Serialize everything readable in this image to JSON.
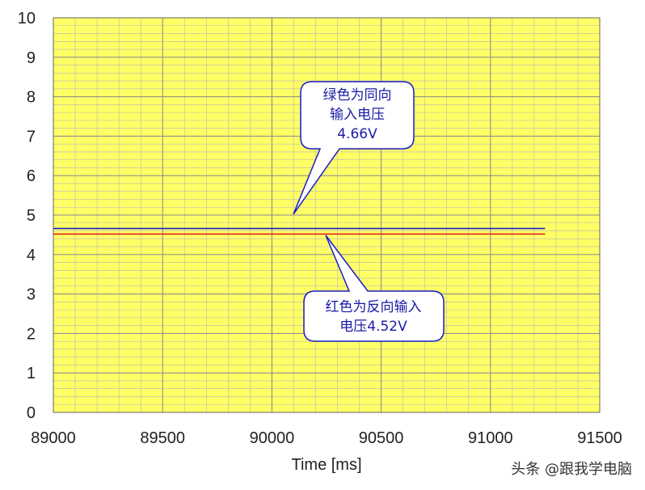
{
  "chart_data": {
    "type": "line",
    "xlabel": "Time [ms]",
    "ylabel": "",
    "xlim": [
      89000,
      91500
    ],
    "ylim": [
      0,
      10
    ],
    "x_ticks": [
      "89000",
      "89500",
      "90000",
      "90500",
      "91000",
      "91500"
    ],
    "y_ticks": [
      "0",
      "1",
      "2",
      "3",
      "4",
      "5",
      "6",
      "7",
      "8",
      "9",
      "10"
    ],
    "grid": true,
    "plot_background": "#ffff66",
    "series": [
      {
        "color": "#1a1acc",
        "x": [
          89000,
          91250
        ],
        "y": [
          4.66,
          4.66
        ]
      },
      {
        "color": "#e02020",
        "x": [
          89000,
          91250
        ],
        "y": [
          4.52,
          4.52
        ]
      }
    ],
    "annotations": [
      {
        "lines": [
          "绿色为同向",
          "输入电压",
          "4.66V"
        ],
        "color": "#1a1aa6"
      },
      {
        "lines": [
          "红色为反向输入",
          "电压4.52V"
        ],
        "color": "#1a1aa6"
      }
    ]
  },
  "watermark": "头条 @跟我学电脑"
}
